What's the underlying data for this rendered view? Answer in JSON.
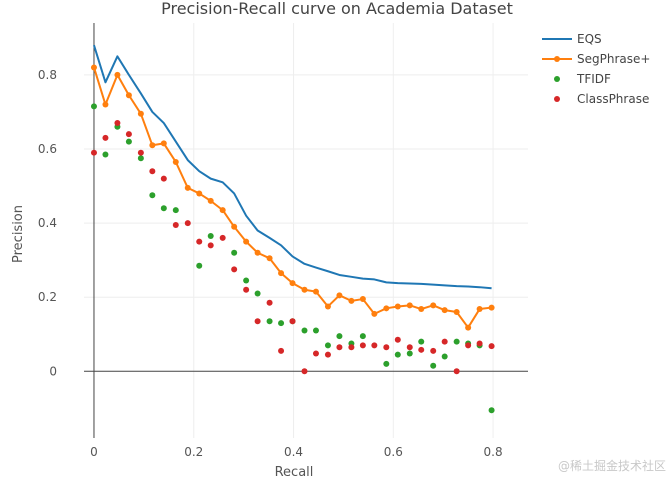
{
  "chart_data": {
    "type": "line",
    "title": "Precision-Recall curve on Academia Dataset",
    "xlabel": "Recall",
    "ylabel": "Precision",
    "xlim": [
      -0.02,
      0.87
    ],
    "ylim": [
      -0.18,
      0.94
    ],
    "x_ticks": [
      0,
      0.2,
      0.4,
      0.6,
      0.8
    ],
    "x_tick_labels": [
      "0",
      "0.2",
      "0.4",
      "0.6",
      "0.8"
    ],
    "y_ticks": [
      0,
      0.2,
      0.4,
      0.6,
      0.8
    ],
    "y_tick_labels": [
      "0",
      "0.2",
      "0.4",
      "0.6",
      "0.8"
    ],
    "legend_position": "top-right",
    "series": [
      {
        "name": "EQS",
        "mode": "line",
        "color": "#1f77b4",
        "x": [
          0,
          0.023,
          0.047,
          0.07,
          0.094,
          0.117,
          0.14,
          0.164,
          0.188,
          0.211,
          0.234,
          0.258,
          0.281,
          0.305,
          0.328,
          0.352,
          0.375,
          0.398,
          0.422,
          0.445,
          0.469,
          0.492,
          0.516,
          0.539,
          0.562,
          0.586,
          0.609,
          0.633,
          0.656,
          0.68,
          0.703,
          0.727,
          0.75,
          0.773,
          0.797
        ],
        "y": [
          0.88,
          0.78,
          0.85,
          0.8,
          0.75,
          0.7,
          0.67,
          0.62,
          0.57,
          0.54,
          0.52,
          0.51,
          0.48,
          0.42,
          0.38,
          0.36,
          0.34,
          0.31,
          0.29,
          0.28,
          0.27,
          0.26,
          0.255,
          0.25,
          0.248,
          0.24,
          0.238,
          0.237,
          0.236,
          0.234,
          0.232,
          0.23,
          0.229,
          0.227,
          0.224
        ]
      },
      {
        "name": "SegPhrase+",
        "mode": "lines+markers",
        "color": "#ff7f0e",
        "x": [
          0,
          0.023,
          0.047,
          0.07,
          0.094,
          0.117,
          0.14,
          0.164,
          0.188,
          0.211,
          0.234,
          0.258,
          0.281,
          0.305,
          0.328,
          0.352,
          0.375,
          0.398,
          0.422,
          0.445,
          0.469,
          0.492,
          0.516,
          0.539,
          0.562,
          0.586,
          0.609,
          0.633,
          0.656,
          0.68,
          0.703,
          0.727,
          0.75,
          0.773,
          0.797
        ],
        "y": [
          0.82,
          0.72,
          0.8,
          0.745,
          0.695,
          0.61,
          0.615,
          0.565,
          0.495,
          0.48,
          0.46,
          0.435,
          0.39,
          0.35,
          0.32,
          0.305,
          0.265,
          0.238,
          0.22,
          0.215,
          0.175,
          0.205,
          0.19,
          0.195,
          0.155,
          0.17,
          0.175,
          0.178,
          0.168,
          0.178,
          0.165,
          0.16,
          0.118,
          0.168,
          0.172
        ]
      },
      {
        "name": "TFIDF",
        "mode": "markers",
        "color": "#2ca02c",
        "x": [
          0,
          0.023,
          0.047,
          0.07,
          0.094,
          0.117,
          0.14,
          0.164,
          0.211,
          0.234,
          0.281,
          0.305,
          0.328,
          0.352,
          0.375,
          0.398,
          0.422,
          0.445,
          0.469,
          0.492,
          0.516,
          0.539,
          0.586,
          0.609,
          0.633,
          0.656,
          0.68,
          0.703,
          0.727,
          0.75,
          0.773,
          0.797
        ],
        "y": [
          0.715,
          0.585,
          0.66,
          0.62,
          0.575,
          0.475,
          0.44,
          0.435,
          0.285,
          0.365,
          0.32,
          0.245,
          0.21,
          0.135,
          0.13,
          0.135,
          0.11,
          0.11,
          0.07,
          0.095,
          0.075,
          0.095,
          0.02,
          0.045,
          0.048,
          0.08,
          0.015,
          0.04,
          0.08,
          0.075,
          0.07,
          -0.105
        ]
      },
      {
        "name": "ClassPhrase",
        "mode": "markers",
        "color": "#d62728",
        "x": [
          0,
          0.023,
          0.047,
          0.07,
          0.094,
          0.117,
          0.14,
          0.164,
          0.188,
          0.211,
          0.234,
          0.258,
          0.281,
          0.305,
          0.328,
          0.352,
          0.375,
          0.398,
          0.422,
          0.445,
          0.469,
          0.492,
          0.516,
          0.539,
          0.562,
          0.586,
          0.609,
          0.633,
          0.656,
          0.68,
          0.703,
          0.727,
          0.75,
          0.773,
          0.797
        ],
        "y": [
          0.59,
          0.63,
          0.67,
          0.64,
          0.59,
          0.54,
          0.52,
          0.395,
          0.4,
          0.35,
          0.34,
          0.36,
          0.275,
          0.22,
          0.135,
          0.185,
          0.055,
          0.135,
          0.0,
          0.048,
          0.045,
          0.065,
          0.065,
          0.07,
          0.07,
          0.065,
          0.085,
          0.065,
          0.058,
          0.055,
          0.08,
          0.0,
          0.07,
          0.075,
          0.068
        ]
      }
    ]
  },
  "watermark": "@稀土掘金技术社区"
}
